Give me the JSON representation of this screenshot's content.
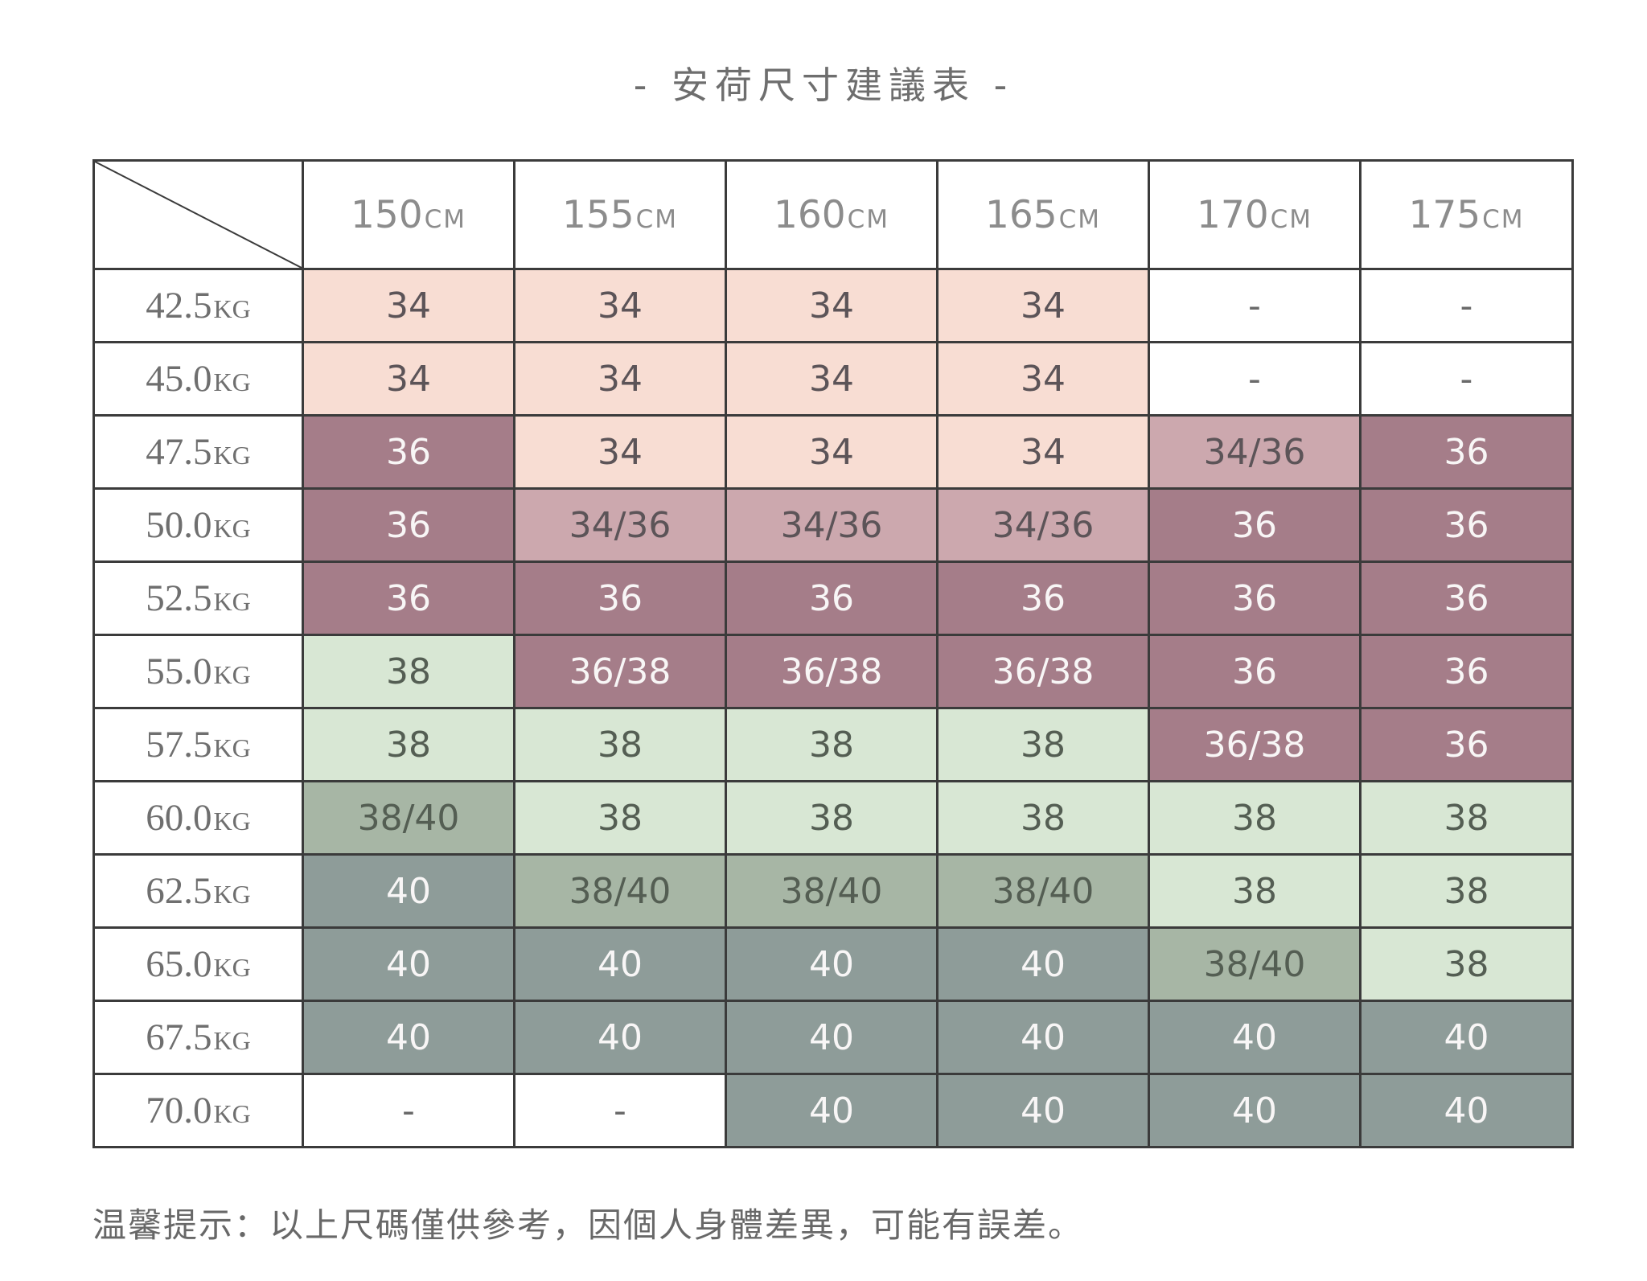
{
  "title": "- 安荷尺寸建議表 -",
  "note": "温馨提示：以上尺碼僅供參考，因個人身體差異，可能有誤差。",
  "chart_data": {
    "type": "table",
    "title": "安荷尺寸建議表",
    "columns": [
      {
        "value": "150",
        "unit": "CM"
      },
      {
        "value": "155",
        "unit": "CM"
      },
      {
        "value": "160",
        "unit": "CM"
      },
      {
        "value": "165",
        "unit": "CM"
      },
      {
        "value": "170",
        "unit": "CM"
      },
      {
        "value": "175",
        "unit": "CM"
      }
    ],
    "rows": [
      {
        "weight": "42.5",
        "unit": "KG",
        "cells": [
          {
            "text": "34",
            "style": "pink"
          },
          {
            "text": "34",
            "style": "pink"
          },
          {
            "text": "34",
            "style": "pink"
          },
          {
            "text": "34",
            "style": "pink"
          },
          {
            "text": "-",
            "style": "blank"
          },
          {
            "text": "-",
            "style": "blank"
          }
        ]
      },
      {
        "weight": "45.0",
        "unit": "KG",
        "cells": [
          {
            "text": "34",
            "style": "pink"
          },
          {
            "text": "34",
            "style": "pink"
          },
          {
            "text": "34",
            "style": "pink"
          },
          {
            "text": "34",
            "style": "pink"
          },
          {
            "text": "-",
            "style": "blank"
          },
          {
            "text": "-",
            "style": "blank"
          }
        ]
      },
      {
        "weight": "47.5",
        "unit": "KG",
        "cells": [
          {
            "text": "36",
            "style": "mauve_dark"
          },
          {
            "text": "34",
            "style": "pink"
          },
          {
            "text": "34",
            "style": "pink"
          },
          {
            "text": "34",
            "style": "pink"
          },
          {
            "text": "34/36",
            "style": "mauve_mid"
          },
          {
            "text": "36",
            "style": "mauve_dark"
          }
        ]
      },
      {
        "weight": "50.0",
        "unit": "KG",
        "cells": [
          {
            "text": "36",
            "style": "mauve_dark"
          },
          {
            "text": "34/36",
            "style": "mauve_mid"
          },
          {
            "text": "34/36",
            "style": "mauve_mid"
          },
          {
            "text": "34/36",
            "style": "mauve_mid"
          },
          {
            "text": "36",
            "style": "mauve_dark"
          },
          {
            "text": "36",
            "style": "mauve_dark"
          }
        ]
      },
      {
        "weight": "52.5",
        "unit": "KG",
        "cells": [
          {
            "text": "36",
            "style": "mauve_dark"
          },
          {
            "text": "36",
            "style": "mauve_dark"
          },
          {
            "text": "36",
            "style": "mauve_dark"
          },
          {
            "text": "36",
            "style": "mauve_dark"
          },
          {
            "text": "36",
            "style": "mauve_dark"
          },
          {
            "text": "36",
            "style": "mauve_dark"
          }
        ]
      },
      {
        "weight": "55.0",
        "unit": "KG",
        "cells": [
          {
            "text": "38",
            "style": "green_light"
          },
          {
            "text": "36/38",
            "style": "mauve_dark"
          },
          {
            "text": "36/38",
            "style": "mauve_dark"
          },
          {
            "text": "36/38",
            "style": "mauve_dark"
          },
          {
            "text": "36",
            "style": "mauve_dark"
          },
          {
            "text": "36",
            "style": "mauve_dark"
          }
        ]
      },
      {
        "weight": "57.5",
        "unit": "KG",
        "cells": [
          {
            "text": "38",
            "style": "green_light"
          },
          {
            "text": "38",
            "style": "green_light"
          },
          {
            "text": "38",
            "style": "green_light"
          },
          {
            "text": "38",
            "style": "green_light"
          },
          {
            "text": "36/38",
            "style": "mauve_dark"
          },
          {
            "text": "36",
            "style": "mauve_dark"
          }
        ]
      },
      {
        "weight": "60.0",
        "unit": "KG",
        "cells": [
          {
            "text": "38/40",
            "style": "sage"
          },
          {
            "text": "38",
            "style": "green_light"
          },
          {
            "text": "38",
            "style": "green_light"
          },
          {
            "text": "38",
            "style": "green_light"
          },
          {
            "text": "38",
            "style": "green_light"
          },
          {
            "text": "38",
            "style": "green_light"
          }
        ]
      },
      {
        "weight": "62.5",
        "unit": "KG",
        "cells": [
          {
            "text": "40",
            "style": "gray"
          },
          {
            "text": "38/40",
            "style": "sage"
          },
          {
            "text": "38/40",
            "style": "sage"
          },
          {
            "text": "38/40",
            "style": "sage"
          },
          {
            "text": "38",
            "style": "green_light"
          },
          {
            "text": "38",
            "style": "green_light"
          }
        ]
      },
      {
        "weight": "65.0",
        "unit": "KG",
        "cells": [
          {
            "text": "40",
            "style": "gray"
          },
          {
            "text": "40",
            "style": "gray"
          },
          {
            "text": "40",
            "style": "gray"
          },
          {
            "text": "40",
            "style": "gray"
          },
          {
            "text": "38/40",
            "style": "sage"
          },
          {
            "text": "38",
            "style": "green_light"
          }
        ]
      },
      {
        "weight": "67.5",
        "unit": "KG",
        "cells": [
          {
            "text": "40",
            "style": "gray"
          },
          {
            "text": "40",
            "style": "gray"
          },
          {
            "text": "40",
            "style": "gray"
          },
          {
            "text": "40",
            "style": "gray"
          },
          {
            "text": "40",
            "style": "gray"
          },
          {
            "text": "40",
            "style": "gray"
          }
        ]
      },
      {
        "weight": "70.0",
        "unit": "KG",
        "cells": [
          {
            "text": "-",
            "style": "blank"
          },
          {
            "text": "-",
            "style": "blank"
          },
          {
            "text": "40",
            "style": "gray"
          },
          {
            "text": "40",
            "style": "gray"
          },
          {
            "text": "40",
            "style": "gray"
          },
          {
            "text": "40",
            "style": "gray"
          }
        ]
      }
    ]
  },
  "palette": {
    "cell_pink": "#f8ddd3",
    "cell_mauve_mid": "#cca8ae",
    "cell_mauve_dark": "#a57d89",
    "cell_green_light": "#d8e7d4",
    "cell_sage": "#a7b6a5",
    "cell_gray": "#8e9c99",
    "text_dark": "#5c5458",
    "text_dark_green": "#545e53",
    "text_light": "#f8f6f6",
    "text_muted": "#6a6a6a",
    "grid": "#3b3b3b",
    "heading_text": "#8c8c8c",
    "weight_label": "#6f6f6f",
    "title_text": "#6e6e6e",
    "note_text": "#686868"
  }
}
